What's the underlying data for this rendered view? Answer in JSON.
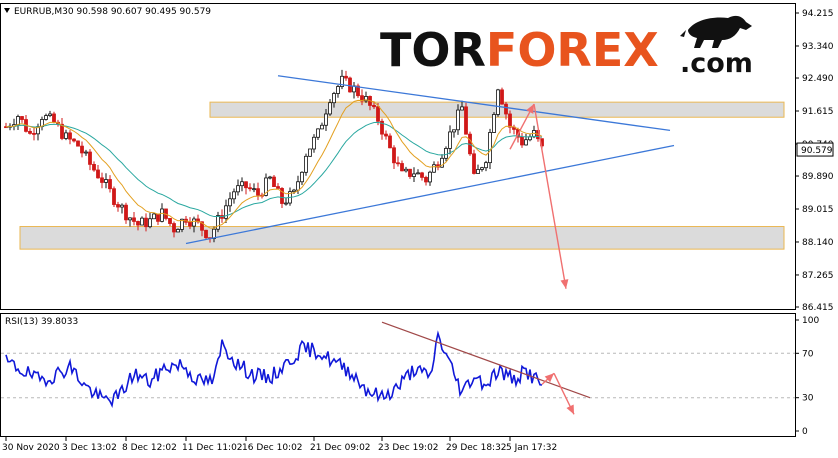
{
  "chart_data": [
    {
      "type": "line",
      "header": "EURRUB,M30  90.598 90.607 90.495 90.579",
      "logo": {
        "part1": "TOR",
        "part2": "FOREX",
        "part3": ".com"
      },
      "y_ticks": [
        "94.215",
        "93.340",
        "92.490",
        "91.615",
        "90.740",
        "89.890",
        "89.015",
        "88.140",
        "87.265",
        "86.415"
      ],
      "ylim": [
        86.415,
        94.215
      ],
      "last_price": "90.579",
      "colors": {
        "candle_up": "#111111",
        "candle_down": "#d01818",
        "ma_fast": "#e3a020",
        "ma_slow": "#2aa8a0",
        "trend": "#3c78d8",
        "arrow": "#f07070",
        "zone_fill": "#d8d8d8",
        "zone_border": "#e8b040"
      },
      "zones": [
        {
          "low": 91.45,
          "high": 91.85
        },
        {
          "low": 87.95,
          "high": 88.55
        }
      ],
      "price_anchors": [
        [
          0,
          91.2
        ],
        [
          3,
          91.5
        ],
        [
          6,
          91.0
        ],
        [
          9,
          91.5
        ],
        [
          12,
          91.3
        ],
        [
          15,
          90.9
        ],
        [
          18,
          90.7
        ],
        [
          21,
          90.2
        ],
        [
          24,
          89.8
        ],
        [
          27,
          89.3
        ],
        [
          30,
          88.9
        ],
        [
          33,
          88.6
        ],
        [
          36,
          88.7
        ],
        [
          39,
          88.9
        ],
        [
          42,
          88.5
        ],
        [
          45,
          88.8
        ],
        [
          48,
          88.6
        ],
        [
          51,
          88.3
        ],
        [
          54,
          88.9
        ],
        [
          57,
          89.5
        ],
        [
          60,
          89.6
        ],
        [
          63,
          89.4
        ],
        [
          66,
          89.8
        ],
        [
          69,
          89.2
        ],
        [
          72,
          89.4
        ],
        [
          75,
          90.5
        ],
        [
          78,
          91.0
        ],
        [
          81,
          92.0
        ],
        [
          84,
          92.4
        ],
        [
          87,
          92.2
        ],
        [
          90,
          91.9
        ],
        [
          93,
          91.4
        ],
        [
          96,
          90.6
        ],
        [
          99,
          89.9
        ],
        [
          102,
          90.0
        ],
        [
          105,
          89.8
        ],
        [
          108,
          90.3
        ],
        [
          111,
          91.0
        ],
        [
          114,
          91.7
        ],
        [
          117,
          89.8
        ],
        [
          120,
          90.4
        ],
        [
          123,
          92.3
        ],
        [
          126,
          91.2
        ],
        [
          129,
          90.8
        ],
        [
          132,
          91.0
        ],
        [
          134,
          90.6
        ]
      ],
      "x_ticks": [
        {
          "label": "30 Nov 2020",
          "bar": 0
        },
        {
          "label": "3 Dec 13:02",
          "bar": 15
        },
        {
          "label": "8 Dec 12:02",
          "bar": 30
        },
        {
          "label": "11 Dec 11:02",
          "bar": 45
        },
        {
          "label": "16 Dec 10:02",
          "bar": 60
        },
        {
          "label": "21 Dec 09:02",
          "bar": 77
        },
        {
          "label": "23 Dec 19:02",
          "bar": 94
        },
        {
          "label": "29 Dec 18:32",
          "bar": 111
        },
        {
          "label": "5 Jan 17:32",
          "bar": 126
        }
      ],
      "trendlines": [
        {
          "bar1": 68,
          "p1": 92.55,
          "bar2": 166,
          "p2": 91.1
        },
        {
          "bar1": 45,
          "p1": 88.1,
          "bar2": 167,
          "p2": 90.7
        }
      ],
      "arrows": [
        {
          "bar1": 126,
          "p1": 90.6,
          "bar2": 132,
          "p2": 91.8
        },
        {
          "bar1": 132,
          "p1": 91.8,
          "bar2": 140,
          "p2": 86.9
        }
      ]
    },
    {
      "type": "line",
      "header": "RSI(13) 39.8033",
      "y_ticks": [
        "100",
        "70",
        "30",
        "0"
      ],
      "ylim": [
        0,
        100
      ],
      "levels": [
        30,
        70
      ],
      "colors": {
        "line": "#1018d8",
        "trend": "#a04848",
        "arrow": "#f07070"
      },
      "rsi_anchors": [
        [
          0,
          62
        ],
        [
          4,
          55
        ],
        [
          8,
          46
        ],
        [
          12,
          50
        ],
        [
          16,
          58
        ],
        [
          20,
          40
        ],
        [
          24,
          28
        ],
        [
          28,
          30
        ],
        [
          32,
          52
        ],
        [
          36,
          44
        ],
        [
          40,
          58
        ],
        [
          44,
          60
        ],
        [
          48,
          45
        ],
        [
          52,
          45
        ],
        [
          54,
          78
        ],
        [
          58,
          60
        ],
        [
          62,
          50
        ],
        [
          66,
          48
        ],
        [
          70,
          60
        ],
        [
          74,
          74
        ],
        [
          78,
          72
        ],
        [
          82,
          62
        ],
        [
          86,
          54
        ],
        [
          90,
          38
        ],
        [
          94,
          30
        ],
        [
          98,
          40
        ],
        [
          102,
          56
        ],
        [
          106,
          48
        ],
        [
          108,
          86
        ],
        [
          111,
          60
        ],
        [
          114,
          35
        ],
        [
          117,
          50
        ],
        [
          120,
          42
        ],
        [
          123,
          55
        ],
        [
          127,
          46
        ],
        [
          130,
          54
        ],
        [
          134,
          42
        ]
      ],
      "trendline": {
        "bar1": 94,
        "v1": 98,
        "bar2": 146,
        "v2": 30
      },
      "arrows": [
        {
          "bar1": 134,
          "v1": 42,
          "bar2": 137,
          "v2": 52
        },
        {
          "bar1": 137,
          "v1": 52,
          "bar2": 142,
          "v2": 15
        }
      ]
    }
  ]
}
